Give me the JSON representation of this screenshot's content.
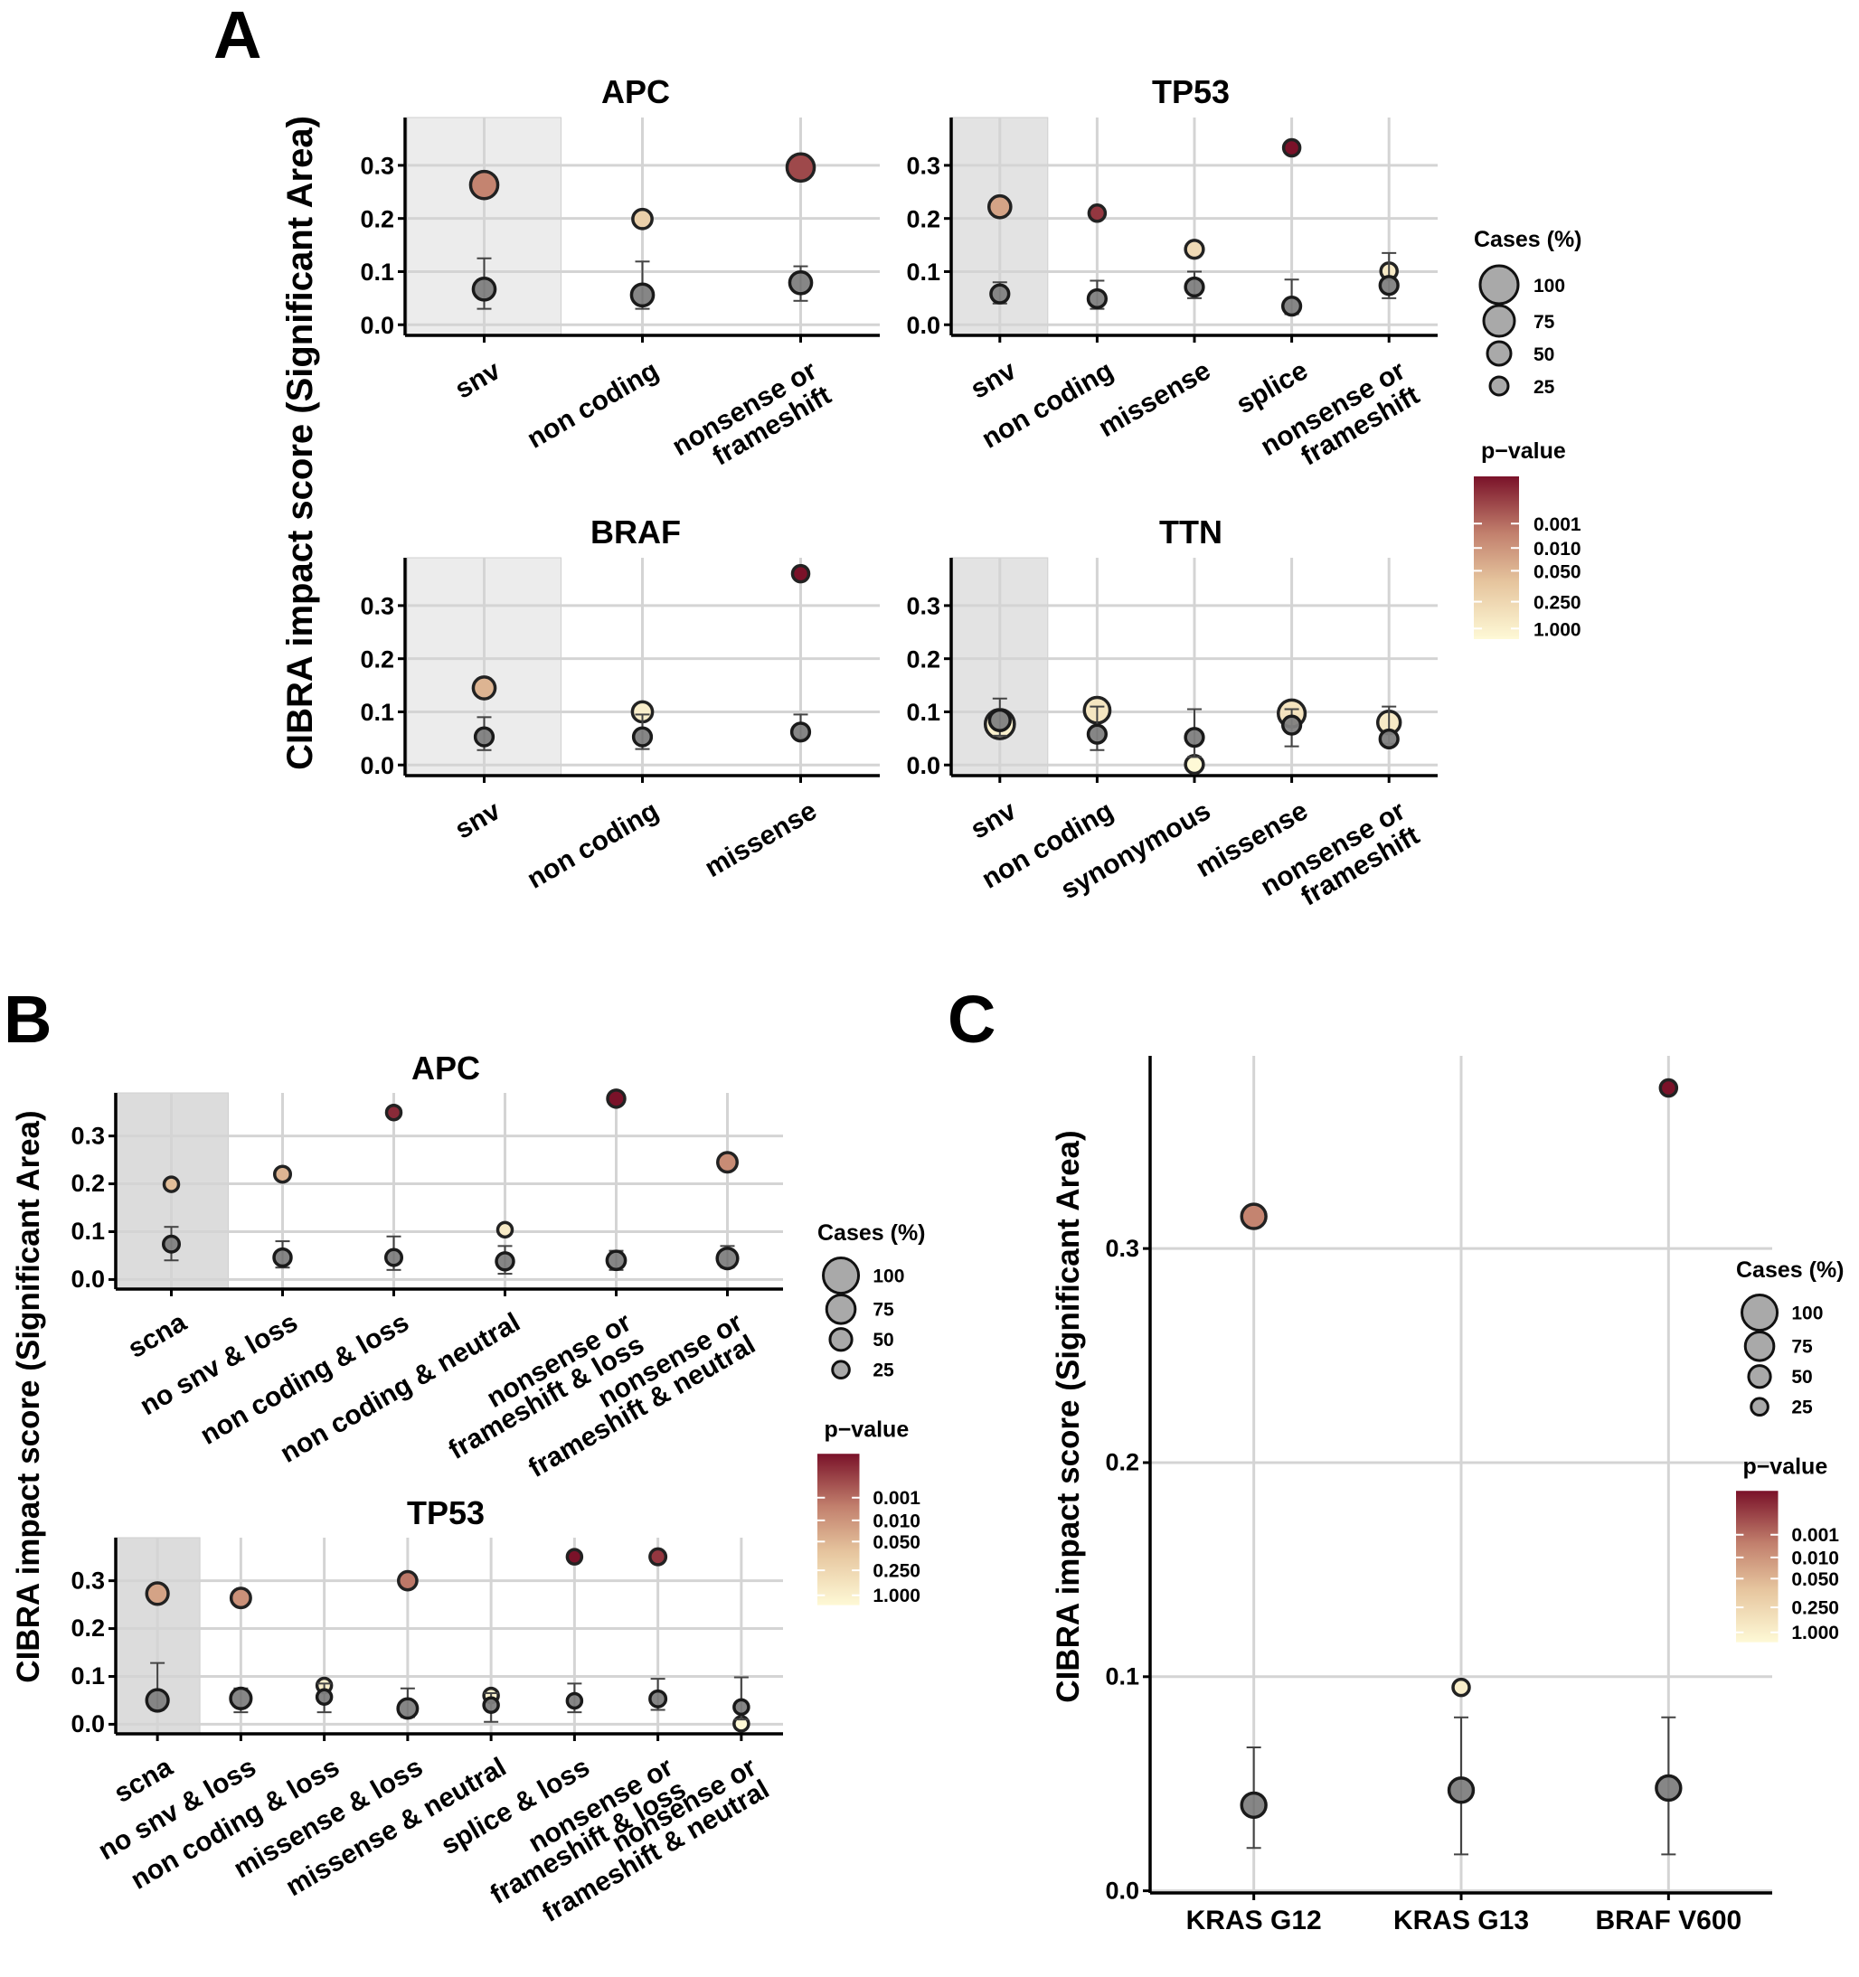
{
  "figure": {
    "panel_letters": [
      "A",
      "B",
      "C"
    ],
    "y_label": "CIBRA impact score (Significant Area)",
    "legend": {
      "size_title": "Cases (%)",
      "size_labels": [
        "100",
        "75",
        "50",
        "25"
      ],
      "color_title": "p−value",
      "color_labels": [
        "0.001",
        "0.010",
        "0.050",
        "0.250",
        "1.000"
      ]
    },
    "colors": {
      "significant_low_p": "#8b1a2e",
      "mid": "#d09a80",
      "not_significant": "#fef9d6",
      "background": "#7f7f7f",
      "highlight_band": "#e6e6e6"
    }
  },
  "chart_data": [
    {
      "id": "A-APC",
      "type": "scatter",
      "title": "APC",
      "categories": [
        "snv",
        "non coding",
        "nonsense or\nframeshift"
      ],
      "ylim": [
        -0.02,
        0.39
      ],
      "yticks": [
        "0.0",
        "0.1",
        "0.2",
        "0.3"
      ],
      "highlight_category": "snv",
      "highlight_shade": "#ececec",
      "series": [
        {
          "name": "observed",
          "points": [
            {
              "x": 0,
              "y": 0.263,
              "cases": 70,
              "p": 0.003
            },
            {
              "x": 1,
              "y": 0.199,
              "cases": 35,
              "p": 0.08
            },
            {
              "x": 2,
              "y": 0.296,
              "cases": 70,
              "p": 0.0005
            }
          ]
        },
        {
          "name": "background",
          "points": [
            {
              "x": 0,
              "y": 0.067,
              "cases": 45,
              "err": [
                0.03,
                0.125
              ]
            },
            {
              "x": 1,
              "y": 0.056,
              "cases": 45,
              "err": [
                0.03,
                0.119
              ]
            },
            {
              "x": 2,
              "y": 0.079,
              "cases": 45,
              "err": [
                0.045,
                0.11
              ]
            }
          ]
        }
      ]
    },
    {
      "id": "A-TP53",
      "type": "scatter",
      "title": "TP53",
      "categories": [
        "snv",
        "non coding",
        "missense",
        "splice",
        "nonsense or\nframeshift"
      ],
      "ylim": [
        -0.02,
        0.39
      ],
      "yticks": [
        "0.0",
        "0.1",
        "0.2",
        "0.3"
      ],
      "highlight_category": "snv",
      "highlight_shade": "#e3e3e3",
      "series": [
        {
          "name": "observed",
          "points": [
            {
              "x": 0,
              "y": 0.222,
              "cases": 45,
              "p": 0.01
            },
            {
              "x": 1,
              "y": 0.21,
              "cases": 12,
              "p": 0.0003
            },
            {
              "x": 2,
              "y": 0.142,
              "cases": 30,
              "p": 0.15
            },
            {
              "x": 3,
              "y": 0.333,
              "cases": 8,
              "p": 0.0001
            },
            {
              "x": 4,
              "y": 0.101,
              "cases": 22,
              "p": 0.4
            }
          ]
        },
        {
          "name": "background",
          "points": [
            {
              "x": 0,
              "y": 0.058,
              "cases": 30,
              "err": [
                0.04,
                0.08
              ]
            },
            {
              "x": 1,
              "y": 0.049,
              "cases": 30,
              "err": [
                0.03,
                0.083
              ]
            },
            {
              "x": 2,
              "y": 0.071,
              "cases": 30,
              "err": [
                0.05,
                0.1
              ]
            },
            {
              "x": 3,
              "y": 0.035,
              "cases": 30,
              "err": [
                0.02,
                0.085
              ]
            },
            {
              "x": 4,
              "y": 0.074,
              "cases": 30,
              "err": [
                0.05,
                0.135
              ]
            }
          ]
        }
      ]
    },
    {
      "id": "A-BRAF",
      "type": "scatter",
      "title": "BRAF",
      "categories": [
        "snv",
        "non coding",
        "missense"
      ],
      "ylim": [
        -0.02,
        0.39
      ],
      "yticks": [
        "0.0",
        "0.1",
        "0.2",
        "0.3"
      ],
      "highlight_category": "snv",
      "highlight_shade": "#ececec",
      "series": [
        {
          "name": "observed",
          "points": [
            {
              "x": 0,
              "y": 0.145,
              "cases": 45,
              "p": 0.02
            },
            {
              "x": 1,
              "y": 0.1,
              "cases": 38,
              "p": 0.5
            },
            {
              "x": 2,
              "y": 0.36,
              "cases": 18,
              "p": 0.0001
            }
          ]
        },
        {
          "name": "background",
          "points": [
            {
              "x": 0,
              "y": 0.053,
              "cases": 30,
              "err": [
                0.028,
                0.09
              ]
            },
            {
              "x": 1,
              "y": 0.053,
              "cases": 30,
              "err": [
                0.03,
                0.095
              ]
            },
            {
              "x": 2,
              "y": 0.062,
              "cases": 30,
              "err": [
                0.05,
                0.095
              ]
            }
          ]
        }
      ]
    },
    {
      "id": "A-TTN",
      "type": "scatter",
      "title": "TTN",
      "categories": [
        "snv",
        "non coding",
        "synonymous",
        "missense",
        "nonsense or\nframeshift"
      ],
      "ylim": [
        -0.02,
        0.39
      ],
      "yticks": [
        "0.0",
        "0.1",
        "0.2",
        "0.3"
      ],
      "highlight_category": "snv",
      "highlight_shade": "#e3e3e3",
      "series": [
        {
          "name": "observed",
          "points": [
            {
              "x": 0,
              "y": 0.077,
              "cases": 80,
              "p": 0.6
            },
            {
              "x": 1,
              "y": 0.103,
              "cases": 62,
              "p": 0.3
            },
            {
              "x": 2,
              "y": 0.001,
              "cases": 30,
              "p": 1.0
            },
            {
              "x": 3,
              "y": 0.097,
              "cases": 68,
              "p": 0.25
            },
            {
              "x": 4,
              "y": 0.08,
              "cases": 48,
              "p": 0.4
            }
          ]
        },
        {
          "name": "background",
          "points": [
            {
              "x": 0,
              "y": 0.084,
              "cases": 40,
              "err": [
                0.055,
                0.125
              ]
            },
            {
              "x": 1,
              "y": 0.058,
              "cases": 30,
              "err": [
                0.028,
                0.11
              ]
            },
            {
              "x": 2,
              "y": 0.052,
              "cases": 30,
              "err": [
                0.015,
                0.105
              ]
            },
            {
              "x": 3,
              "y": 0.075,
              "cases": 30,
              "err": [
                0.035,
                0.105
              ]
            },
            {
              "x": 4,
              "y": 0.049,
              "cases": 30,
              "err": [
                0.04,
                0.11
              ]
            }
          ]
        }
      ]
    },
    {
      "id": "B-APC",
      "type": "scatter",
      "title": "APC",
      "categories": [
        "scna",
        "no snv & loss",
        "non coding & loss",
        "non coding & neutral",
        "nonsense or\nframeshift & loss",
        "nonsense or\nframeshift & neutral"
      ],
      "ylim": [
        -0.02,
        0.39
      ],
      "yticks": [
        "0.0",
        "0.1",
        "0.2",
        "0.3"
      ],
      "highlight_category": "scna",
      "highlight_shade": "#dcdcdc",
      "series": [
        {
          "name": "observed",
          "points": [
            {
              "x": 0,
              "y": 0.199,
              "cases": 25,
              "p": 0.03
            },
            {
              "x": 1,
              "y": 0.22,
              "cases": 30,
              "p": 0.02
            },
            {
              "x": 2,
              "y": 0.349,
              "cases": 20,
              "p": 0.0002
            },
            {
              "x": 3,
              "y": 0.104,
              "cases": 25,
              "p": 0.4
            },
            {
              "x": 4,
              "y": 0.378,
              "cases": 35,
              "p": 0.0001
            },
            {
              "x": 5,
              "y": 0.245,
              "cases": 45,
              "p": 0.004
            }
          ]
        },
        {
          "name": "background",
          "points": [
            {
              "x": 0,
              "y": 0.074,
              "cases": 30,
              "err": [
                0.04,
                0.11
              ]
            },
            {
              "x": 1,
              "y": 0.046,
              "cases": 35,
              "err": [
                0.025,
                0.08
              ]
            },
            {
              "x": 2,
              "y": 0.046,
              "cases": 30,
              "err": [
                0.02,
                0.09
              ]
            },
            {
              "x": 3,
              "y": 0.038,
              "cases": 35,
              "err": [
                0.012,
                0.07
              ]
            },
            {
              "x": 4,
              "y": 0.04,
              "cases": 40,
              "err": [
                0.02,
                0.06
              ]
            },
            {
              "x": 5,
              "y": 0.044,
              "cases": 50,
              "err": [
                0.025,
                0.07
              ]
            }
          ]
        }
      ]
    },
    {
      "id": "B-TP53",
      "type": "scatter",
      "title": "TP53",
      "categories": [
        "scna",
        "no snv & loss",
        "non coding & loss",
        "missense & loss",
        "missense & neutral",
        "splice & loss",
        "nonsense or\nframeshift & loss",
        "nonsense or\nframeshift & neutral"
      ],
      "ylim": [
        -0.02,
        0.39
      ],
      "yticks": [
        "0.0",
        "0.1",
        "0.2",
        "0.3"
      ],
      "highlight_category": "scna",
      "highlight_shade": "#dcdcdc",
      "series": [
        {
          "name": "observed",
          "points": [
            {
              "x": 0,
              "y": 0.273,
              "cases": 55,
              "p": 0.01
            },
            {
              "x": 1,
              "y": 0.264,
              "cases": 45,
              "p": 0.005
            },
            {
              "x": 2,
              "y": 0.081,
              "cases": 18,
              "p": 0.5
            },
            {
              "x": 3,
              "y": 0.3,
              "cases": 40,
              "p": 0.002
            },
            {
              "x": 4,
              "y": 0.06,
              "cases": 18,
              "p": 0.6
            },
            {
              "x": 5,
              "y": 0.35,
              "cases": 18,
              "p": 0.0001
            },
            {
              "x": 6,
              "y": 0.35,
              "cases": 30,
              "p": 0.0003
            },
            {
              "x": 7,
              "y": 0.001,
              "cases": 18,
              "p": 1.0
            }
          ]
        },
        {
          "name": "background",
          "points": [
            {
              "x": 0,
              "y": 0.05,
              "cases": 55,
              "err": [
                0.03,
                0.128
              ]
            },
            {
              "x": 1,
              "y": 0.054,
              "cases": 50,
              "err": [
                0.025,
                0.075
              ]
            },
            {
              "x": 2,
              "y": 0.057,
              "cases": 18,
              "err": [
                0.025,
                0.085
              ]
            },
            {
              "x": 3,
              "y": 0.033,
              "cases": 45,
              "err": [
                0.015,
                0.075
              ]
            },
            {
              "x": 4,
              "y": 0.04,
              "cases": 25,
              "err": [
                0.005,
                0.065
              ]
            },
            {
              "x": 5,
              "y": 0.049,
              "cases": 25,
              "err": [
                0.025,
                0.085
              ]
            },
            {
              "x": 6,
              "y": 0.053,
              "cases": 30,
              "err": [
                0.03,
                0.095
              ]
            },
            {
              "x": 7,
              "y": 0.036,
              "cases": 20,
              "err": [
                0.01,
                0.098
              ]
            }
          ]
        }
      ]
    },
    {
      "id": "C",
      "type": "scatter",
      "title": "",
      "categories": [
        "KRAS G12",
        "KRAS G13",
        "BRAF V600"
      ],
      "ylim": [
        -0.001,
        0.39
      ],
      "yticks": [
        "0.0",
        "0.1",
        "0.2",
        "0.3"
      ],
      "highlight_category": "",
      "highlight_shade": "",
      "series": [
        {
          "name": "observed",
          "points": [
            {
              "x": 0,
              "y": 0.315,
              "cases": 50,
              "p": 0.003
            },
            {
              "x": 1,
              "y": 0.095,
              "cases": 18,
              "p": 0.5
            },
            {
              "x": 2,
              "y": 0.375,
              "cases": 18,
              "p": 0.0001
            }
          ]
        },
        {
          "name": "background",
          "points": [
            {
              "x": 0,
              "y": 0.04,
              "cases": 50,
              "err": [
                0.02,
                0.067
              ]
            },
            {
              "x": 1,
              "y": 0.047,
              "cases": 50,
              "err": [
                0.017,
                0.081
              ]
            },
            {
              "x": 2,
              "y": 0.048,
              "cases": 50,
              "err": [
                0.017,
                0.081
              ]
            }
          ]
        }
      ]
    }
  ]
}
